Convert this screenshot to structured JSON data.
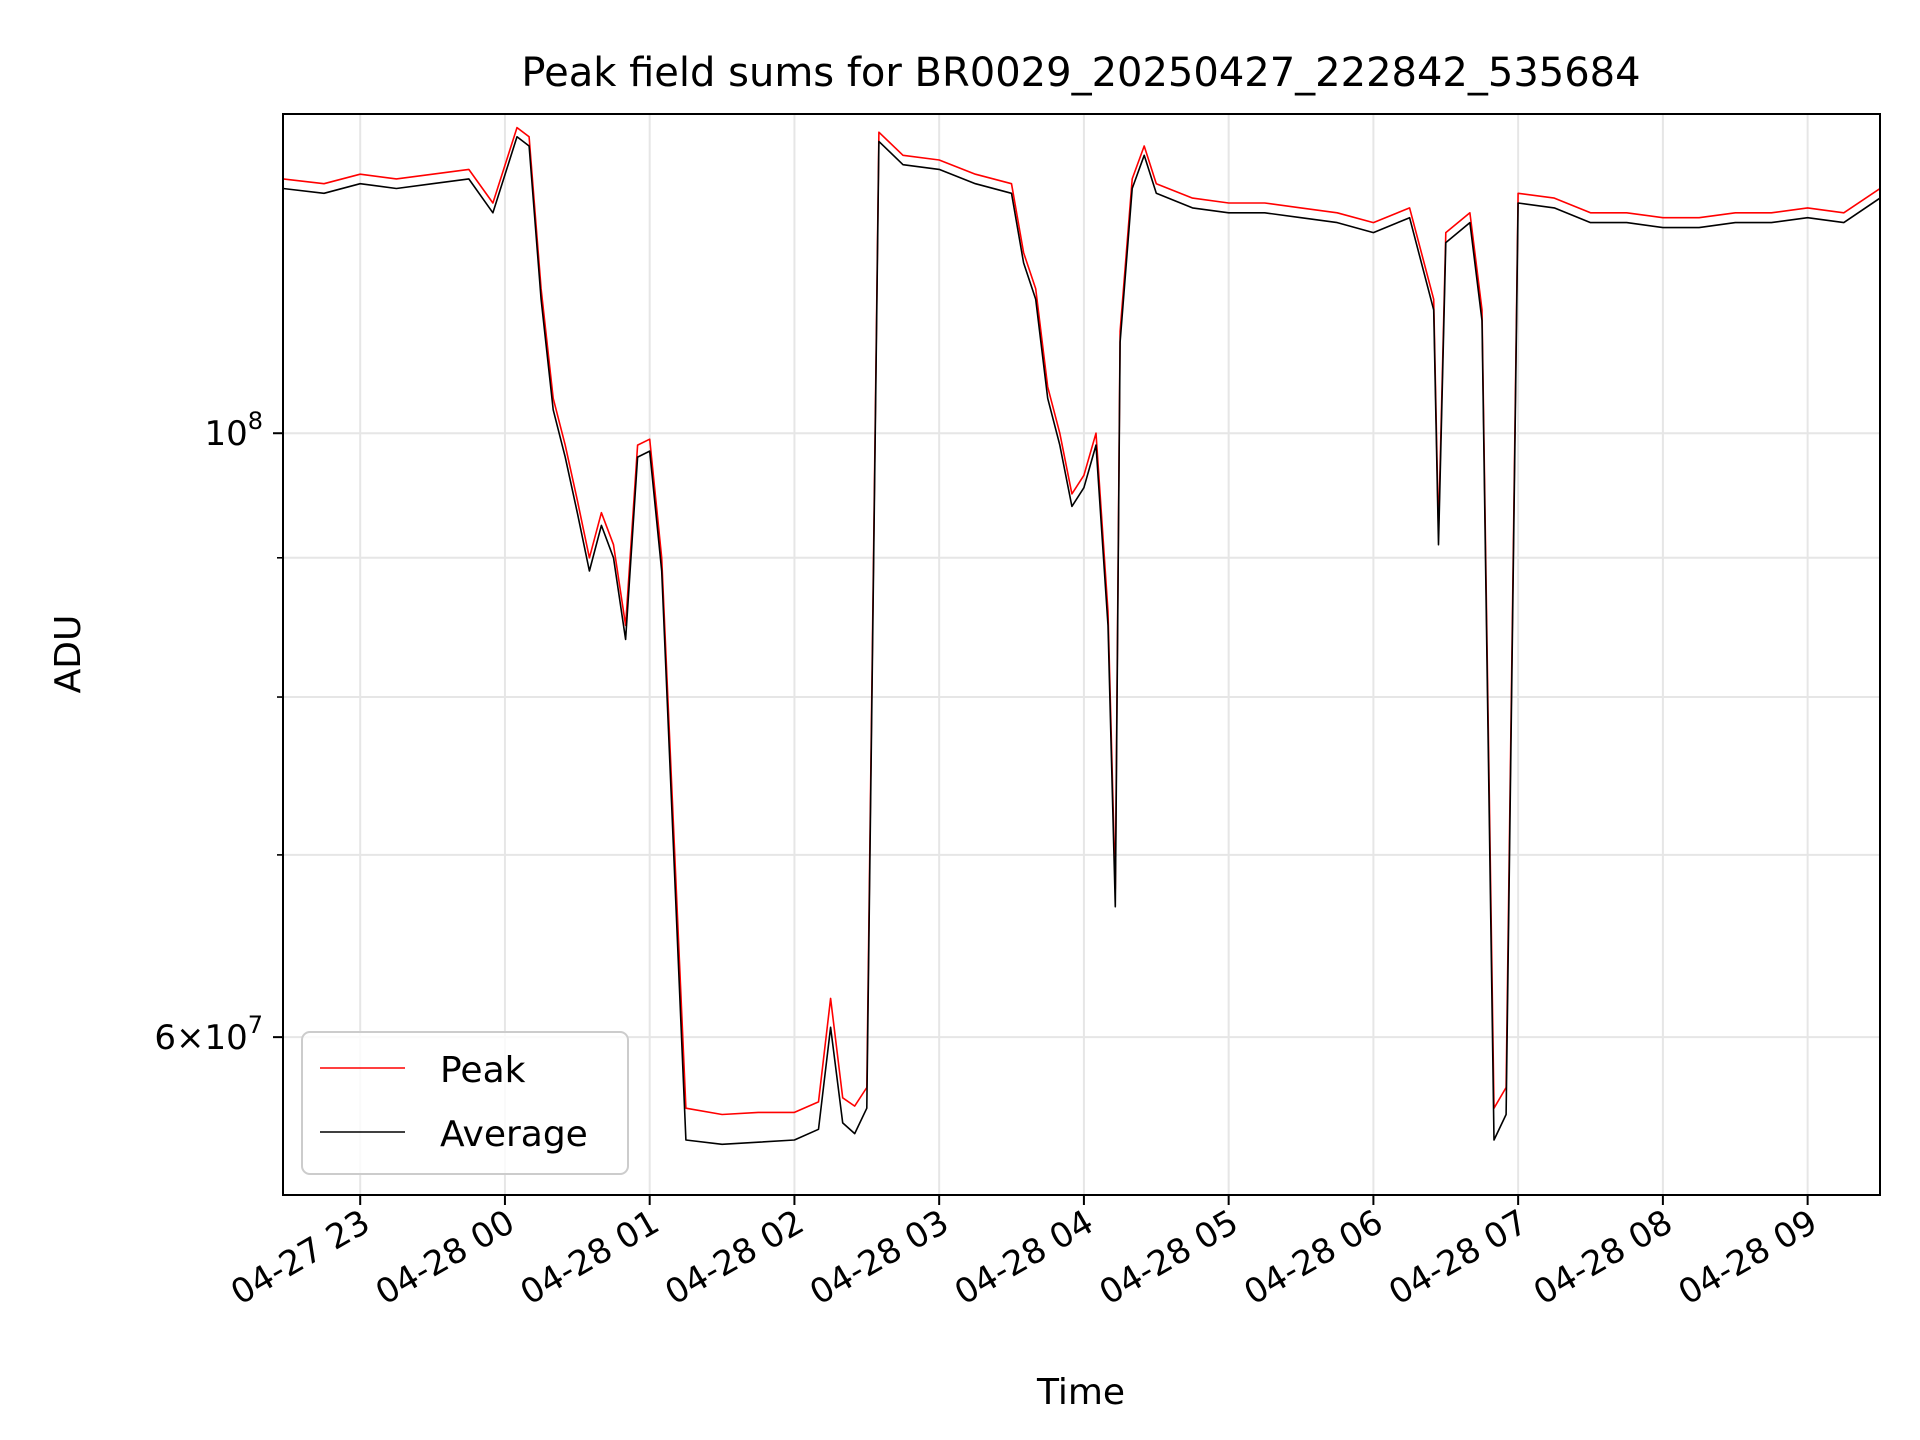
{
  "colors": {
    "background": "#ffffff",
    "peak": "#ff0000",
    "average": "#000000",
    "grid": "#e6e6e6",
    "axes": "#000000",
    "legend_border": "#cccccc"
  },
  "chart_data": {
    "type": "line",
    "title": "Peak field sums for BR0029_20250427_222842_535684",
    "xlabel": "Time",
    "ylabel": "ADU",
    "x_range": [
      "2025-04-27 22:28",
      "2025-04-28 09:30"
    ],
    "y_scale": "log",
    "ylim": [
      52500000,
      131000000
    ],
    "grid": true,
    "legend_position": "lower-left",
    "x_ticks": [
      {
        "value": "2025-04-27 23:00",
        "label": "04-27 23"
      },
      {
        "value": "2025-04-28 00:00",
        "label": "04-28 00"
      },
      {
        "value": "2025-04-28 01:00",
        "label": "04-28 01"
      },
      {
        "value": "2025-04-28 02:00",
        "label": "04-28 02"
      },
      {
        "value": "2025-04-28 03:00",
        "label": "04-28 03"
      },
      {
        "value": "2025-04-28 04:00",
        "label": "04-28 04"
      },
      {
        "value": "2025-04-28 05:00",
        "label": "04-28 05"
      },
      {
        "value": "2025-04-28 06:00",
        "label": "04-28 06"
      },
      {
        "value": "2025-04-28 07:00",
        "label": "04-28 07"
      },
      {
        "value": "2025-04-28 08:00",
        "label": "04-28 08"
      },
      {
        "value": "2025-04-28 09:00",
        "label": "04-28 09"
      }
    ],
    "y_major_ticks": [
      {
        "value": 60000000,
        "base": "6",
        "exponent": "7",
        "times": "×",
        "ten": "10"
      },
      {
        "value": 100000000,
        "base": "",
        "exponent": "8",
        "times": "",
        "ten": "10"
      }
    ],
    "y_minor_ticks": [
      70000000,
      80000000,
      90000000
    ],
    "series": [
      {
        "name": "Peak",
        "color": "#ff0000",
        "x": [
          "2025-04-27 22:28",
          "2025-04-27 22:45",
          "2025-04-27 23:00",
          "2025-04-27 23:15",
          "2025-04-27 23:30",
          "2025-04-27 23:45",
          "2025-04-27 23:55",
          "2025-04-28 00:05",
          "2025-04-28 00:10",
          "2025-04-28 00:15",
          "2025-04-28 00:20",
          "2025-04-28 00:25",
          "2025-04-28 00:30",
          "2025-04-28 00:35",
          "2025-04-28 00:40",
          "2025-04-28 00:45",
          "2025-04-28 00:50",
          "2025-04-28 00:55",
          "2025-04-28 01:00",
          "2025-04-28 01:05",
          "2025-04-28 01:15",
          "2025-04-28 01:30",
          "2025-04-28 01:45",
          "2025-04-28 02:00",
          "2025-04-28 02:10",
          "2025-04-28 02:15",
          "2025-04-28 02:20",
          "2025-04-28 02:25",
          "2025-04-28 02:30",
          "2025-04-28 02:35",
          "2025-04-28 02:45",
          "2025-04-28 03:00",
          "2025-04-28 03:15",
          "2025-04-28 03:30",
          "2025-04-28 03:35",
          "2025-04-28 03:40",
          "2025-04-28 03:45",
          "2025-04-28 03:50",
          "2025-04-28 03:55",
          "2025-04-28 04:00",
          "2025-04-28 04:05",
          "2025-04-28 04:10",
          "2025-04-28 04:13",
          "2025-04-28 04:15",
          "2025-04-28 04:20",
          "2025-04-28 04:25",
          "2025-04-28 04:30",
          "2025-04-28 04:45",
          "2025-04-28 05:00",
          "2025-04-28 05:15",
          "2025-04-28 05:30",
          "2025-04-28 05:45",
          "2025-04-28 06:00",
          "2025-04-28 06:15",
          "2025-04-28 06:25",
          "2025-04-28 06:27",
          "2025-04-28 06:30",
          "2025-04-28 06:40",
          "2025-04-28 06:45",
          "2025-04-28 06:50",
          "2025-04-28 06:55",
          "2025-04-28 07:00",
          "2025-04-28 07:15",
          "2025-04-28 07:30",
          "2025-04-28 07:45",
          "2025-04-28 08:00",
          "2025-04-28 08:15",
          "2025-04-28 08:30",
          "2025-04-28 08:45",
          "2025-04-28 09:00",
          "2025-04-28 09:15",
          "2025-04-28 09:30"
        ],
        "values": [
          124000000,
          123500000,
          124500000,
          124000000,
          124500000,
          125000000,
          121500000,
          129500000,
          128500000,
          113000000,
          103000000,
          99000000,
          94500000,
          90000000,
          93500000,
          91000000,
          85000000,
          99000000,
          99500000,
          90000000,
          56500000,
          56200000,
          56300000,
          56300000,
          56800000,
          62000000,
          57000000,
          56600000,
          57500000,
          129000000,
          126500000,
          126000000,
          124500000,
          123500000,
          116500000,
          113000000,
          104000000,
          100000000,
          95000000,
          96500000,
          100000000,
          86000000,
          68000000,
          109000000,
          124000000,
          127500000,
          123500000,
          122000000,
          121500000,
          121500000,
          121000000,
          120500000,
          119500000,
          121000000,
          112000000,
          92000000,
          118500000,
          120500000,
          111000000,
          56500000,
          57500000,
          122500000,
          122000000,
          120500000,
          120500000,
          120000000,
          120000000,
          120500000,
          120500000,
          121000000,
          120500000,
          123000000
        ]
      },
      {
        "name": "Average",
        "color": "#000000",
        "x": [
          "2025-04-27 22:28",
          "2025-04-27 22:45",
          "2025-04-27 23:00",
          "2025-04-27 23:15",
          "2025-04-27 23:30",
          "2025-04-27 23:45",
          "2025-04-27 23:55",
          "2025-04-28 00:05",
          "2025-04-28 00:10",
          "2025-04-28 00:15",
          "2025-04-28 00:20",
          "2025-04-28 00:25",
          "2025-04-28 00:30",
          "2025-04-28 00:35",
          "2025-04-28 00:40",
          "2025-04-28 00:45",
          "2025-04-28 00:50",
          "2025-04-28 00:55",
          "2025-04-28 01:00",
          "2025-04-28 01:05",
          "2025-04-28 01:15",
          "2025-04-28 01:30",
          "2025-04-28 01:45",
          "2025-04-28 02:00",
          "2025-04-28 02:10",
          "2025-04-28 02:15",
          "2025-04-28 02:20",
          "2025-04-28 02:25",
          "2025-04-28 02:30",
          "2025-04-28 02:35",
          "2025-04-28 02:45",
          "2025-04-28 03:00",
          "2025-04-28 03:15",
          "2025-04-28 03:30",
          "2025-04-28 03:35",
          "2025-04-28 03:40",
          "2025-04-28 03:45",
          "2025-04-28 03:50",
          "2025-04-28 03:55",
          "2025-04-28 04:00",
          "2025-04-28 04:05",
          "2025-04-28 04:10",
          "2025-04-28 04:13",
          "2025-04-28 04:15",
          "2025-04-28 04:20",
          "2025-04-28 04:25",
          "2025-04-28 04:30",
          "2025-04-28 04:45",
          "2025-04-28 05:00",
          "2025-04-28 05:15",
          "2025-04-28 05:30",
          "2025-04-28 05:45",
          "2025-04-28 06:00",
          "2025-04-28 06:15",
          "2025-04-28 06:25",
          "2025-04-28 06:27",
          "2025-04-28 06:30",
          "2025-04-28 06:40",
          "2025-04-28 06:45",
          "2025-04-28 06:50",
          "2025-04-28 06:55",
          "2025-04-28 07:00",
          "2025-04-28 07:15",
          "2025-04-28 07:30",
          "2025-04-28 07:45",
          "2025-04-28 08:00",
          "2025-04-28 08:15",
          "2025-04-28 08:30",
          "2025-04-28 08:45",
          "2025-04-28 09:00",
          "2025-04-28 09:15",
          "2025-04-28 09:30"
        ],
        "values": [
          123000000,
          122500000,
          123500000,
          123000000,
          123500000,
          124000000,
          120500000,
          128500000,
          127500000,
          112000000,
          102000000,
          98000000,
          93500000,
          89000000,
          92500000,
          90000000,
          84000000,
          98000000,
          98500000,
          89000000,
          55000000,
          54800000,
          54900000,
          55000000,
          55500000,
          60500000,
          55800000,
          55300000,
          56500000,
          128000000,
          125500000,
          125000000,
          123500000,
          122500000,
          115500000,
          112000000,
          103000000,
          99000000,
          94000000,
          95500000,
          99000000,
          85000000,
          67000000,
          108000000,
          123000000,
          126500000,
          122500000,
          121000000,
          120500000,
          120500000,
          120000000,
          119500000,
          118500000,
          120000000,
          111000000,
          91000000,
          117500000,
          119500000,
          110000000,
          55000000,
          56200000,
          121500000,
          121000000,
          119500000,
          119500000,
          119000000,
          119000000,
          119500000,
          119500000,
          120000000,
          119500000,
          122000000
        ]
      }
    ]
  }
}
